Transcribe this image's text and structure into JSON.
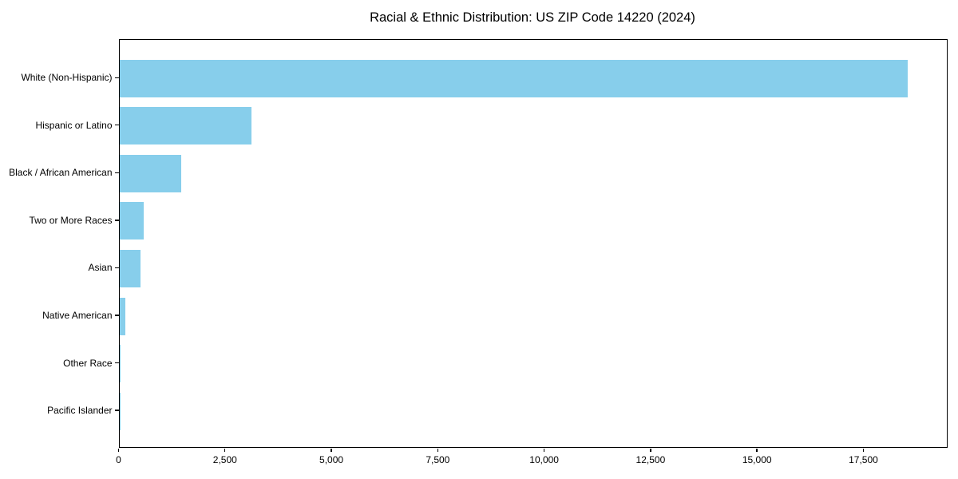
{
  "page": {
    "background_color": "#ffffff",
    "text_color": "#000000"
  },
  "chart_data": {
    "type": "bar",
    "orientation": "horizontal",
    "title": "Racial & Ethnic Distribution: US ZIP Code 14220 (2024)",
    "categories": [
      "White (Non-Hispanic)",
      "Hispanic or Latino",
      "Black / African American",
      "Two or More Races",
      "Asian",
      "Native American",
      "Other Race",
      "Pacific Islander"
    ],
    "values": [
      18520,
      3100,
      1450,
      580,
      495,
      150,
      15,
      2
    ],
    "xlabel": "",
    "ylabel": "",
    "xlim": [
      0,
      19470
    ],
    "x_ticks": [
      0,
      2500,
      5000,
      7500,
      10000,
      12500,
      15000,
      17500
    ],
    "x_tick_labels": [
      "0",
      "2,500",
      "5,000",
      "7,500",
      "10,000",
      "12,500",
      "15,000",
      "17,500"
    ],
    "bar_color": "#87CEEB",
    "axis_color": "#000000",
    "grid": false,
    "legend": null
  }
}
